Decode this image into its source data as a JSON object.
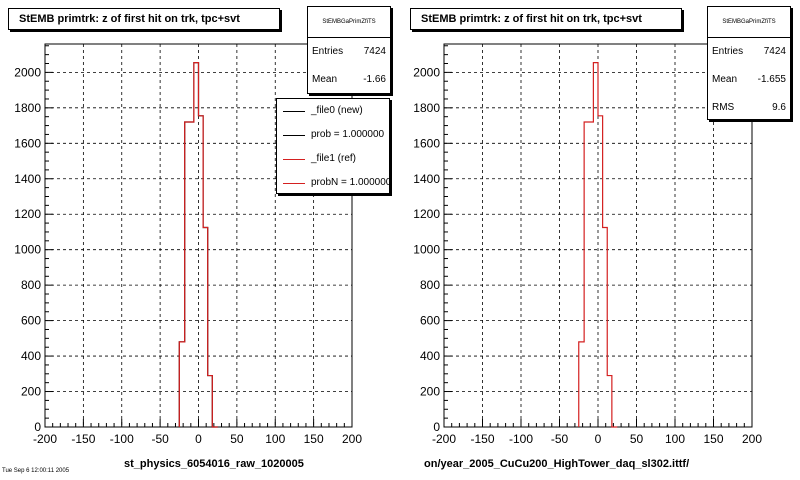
{
  "chart_data": [
    {
      "type": "bar",
      "title": "StEMB primtrk: z of first hit on trk, tpc+svt",
      "xlabel": "st_physics_6054016_raw_1020005",
      "xlim": [
        -200,
        200
      ],
      "ylim": [
        0,
        2160
      ],
      "xticks": [
        "-200",
        "-150",
        "-100",
        "-50",
        "0",
        "50",
        "100",
        "150",
        "200"
      ],
      "yticks": [
        "0",
        "200",
        "400",
        "600",
        "800",
        "1000",
        "1200",
        "1400",
        "1600",
        "1800",
        "2000"
      ],
      "grid": true,
      "bin_edges": [
        -25,
        -18,
        -6,
        0,
        6,
        12,
        18,
        25
      ],
      "series": [
        {
          "name": "_file0 (new)",
          "color": "#000000",
          "values": [
            480,
            1720,
            2055,
            1755,
            1125,
            290,
            0
          ]
        },
        {
          "name": "_file1 (ref)",
          "color": "#d42020",
          "values": [
            480,
            1720,
            2055,
            1755,
            1125,
            290,
            0
          ]
        }
      ],
      "stats": {
        "name": "StEMBGaPrimZfiTS",
        "entries_label": "Entries",
        "entries": "7424",
        "mean_label": "Mean",
        "mean": "-1.66"
      },
      "legend": [
        {
          "text": "_file0 (new)",
          "color": "#000000"
        },
        {
          "text": "prob = 1.000000",
          "color": "#000000"
        },
        {
          "text": "_file1 (ref)",
          "color": "#d42020"
        },
        {
          "text": "probN = 1.000000",
          "color": "#d42020"
        }
      ]
    },
    {
      "type": "bar",
      "title": "StEMB primtrk: z of first hit on trk, tpc+svt",
      "xlabel": "on/year_2005_CuCu200_HighTower_daq_sl302.ittf/",
      "xlim": [
        -200,
        200
      ],
      "ylim": [
        0,
        2160
      ],
      "xticks": [
        "-200",
        "-150",
        "-100",
        "-50",
        "0",
        "50",
        "100",
        "150",
        "200"
      ],
      "yticks": [
        "0",
        "200",
        "400",
        "600",
        "800",
        "1000",
        "1200",
        "1400",
        "1600",
        "1800",
        "2000"
      ],
      "grid": true,
      "bin_edges": [
        -25,
        -18,
        -6,
        0,
        6,
        12,
        18,
        25
      ],
      "series": [
        {
          "name": "",
          "color": "#d42020",
          "values": [
            480,
            1720,
            2055,
            1755,
            1125,
            290,
            0
          ]
        }
      ],
      "stats": {
        "name": "StEMBGaPrimZfiTS",
        "entries_label": "Entries",
        "entries": "7424",
        "mean_label": "Mean",
        "mean": "-1.655",
        "rms_label": "RMS",
        "rms": "9.6"
      }
    }
  ],
  "footer": "Tue Sep 6 12:00:11 2005"
}
